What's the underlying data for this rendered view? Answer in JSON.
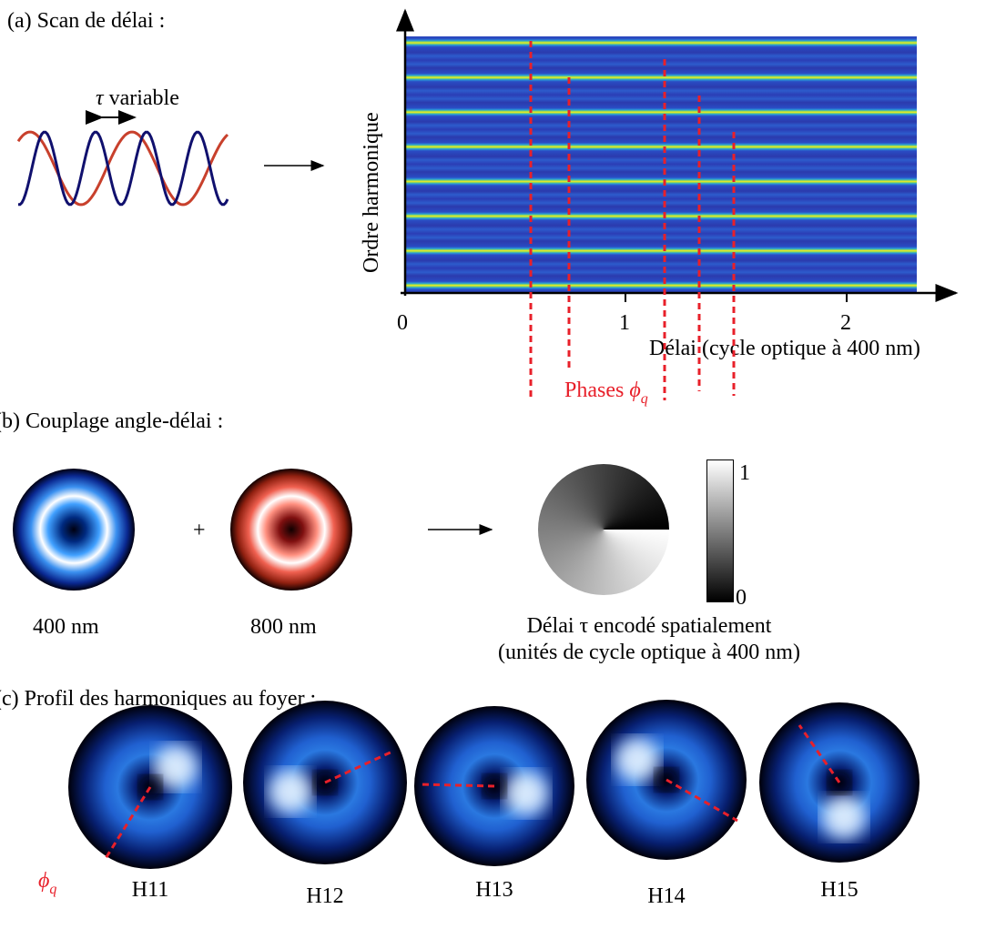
{
  "panel_a": {
    "label": "(a) Scan de délai :",
    "delay_label": {
      "symbol": "τ",
      "text": " variable"
    },
    "y_axis_label": "Ordre harmonique",
    "x_ticks": [
      "0",
      "1",
      "2"
    ],
    "x_axis_label": "Délai (cycle optique à 400 nm)",
    "phases_label": {
      "text": "Phases ",
      "symbol": "ϕ",
      "subscript": "q"
    }
  },
  "panel_b": {
    "label": "(b) Couplage angle-délai :",
    "plus": "+",
    "beam_labels": [
      "400 nm",
      "800 nm"
    ],
    "colorbar_ticks": [
      "1",
      "0"
    ],
    "caption": [
      "Délai τ encodé spatialement",
      "(unités de cycle optique à 400 nm)"
    ]
  },
  "panel_c": {
    "label": "(c) Profil des harmoniques au foyer :",
    "phase_symbol": {
      "symbol": "ϕ",
      "subscript": "q"
    },
    "harmonics": [
      "H11",
      "H12",
      "H13",
      "H14",
      "H15"
    ]
  }
}
